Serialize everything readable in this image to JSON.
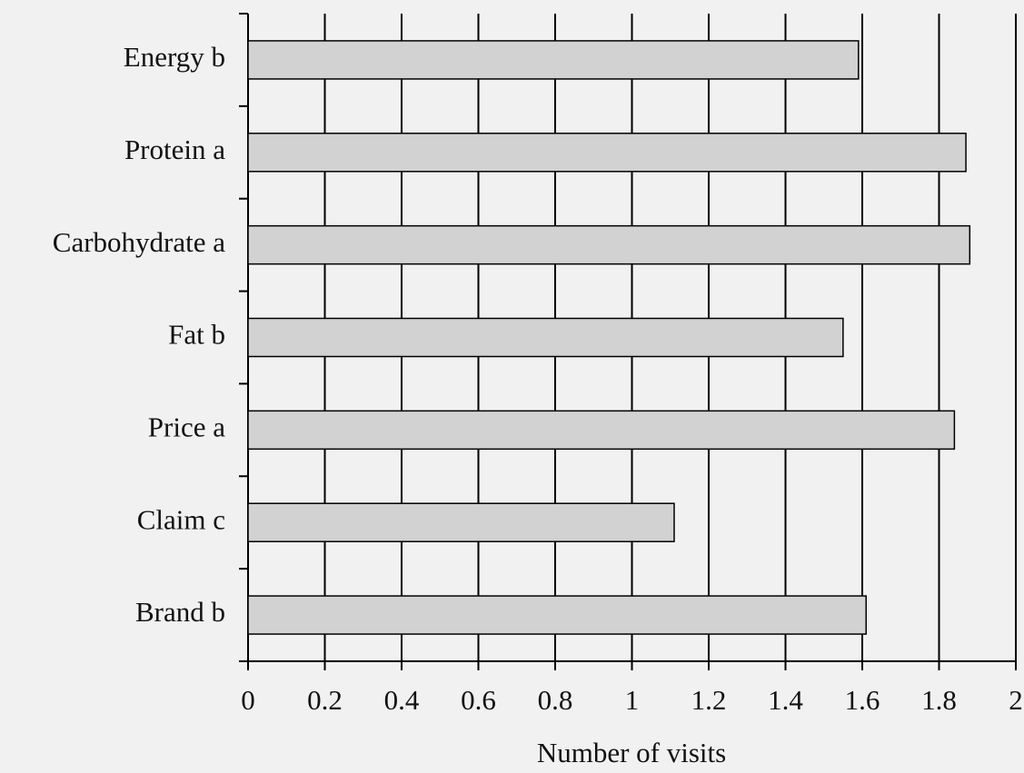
{
  "chart_data": {
    "type": "bar",
    "orientation": "horizontal",
    "categories": [
      "Energy b",
      "Protein a",
      "Carbohydrate a",
      "Fat b",
      "Price a",
      "Claim c",
      "Brand b"
    ],
    "values": [
      1.59,
      1.87,
      1.88,
      1.55,
      1.84,
      1.11,
      1.61
    ],
    "color": "#d2d2d2",
    "xlabel": "Number of visits",
    "xlim": [
      0,
      2
    ],
    "xticks": [
      0,
      0.2,
      0.4,
      0.6,
      0.8,
      1,
      1.2,
      1.4,
      1.6,
      1.8,
      2
    ],
    "grid": true
  }
}
